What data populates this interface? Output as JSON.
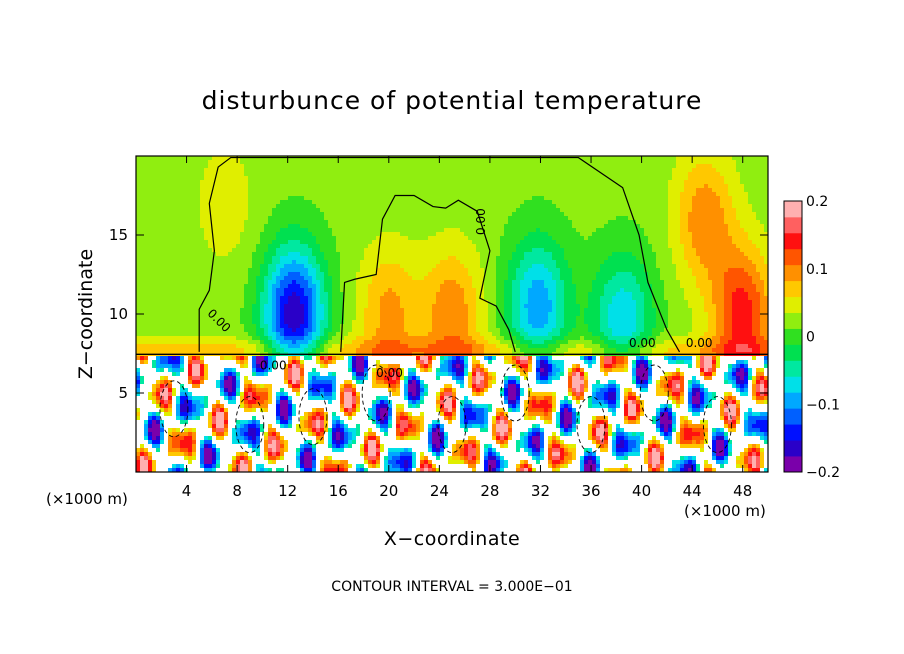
{
  "chart_data": {
    "type": "heatmap",
    "title": "disturbunce of potential temperature",
    "xlabel": "X−coordinate",
    "ylabel": "Z−coordinate",
    "xunit": "(×1000 m)",
    "xunit_right": "(×1000 m)",
    "footer": "CONTOUR INTERVAL = 3.000E−01",
    "xlim": [
      0,
      50
    ],
    "ylim": [
      0,
      20
    ],
    "x_ticks": [
      4,
      8,
      12,
      16,
      20,
      24,
      28,
      32,
      36,
      40,
      44,
      48
    ],
    "y_ticks": [
      5,
      10,
      15
    ],
    "colorbar": {
      "range": [
        -0.2,
        0.2
      ],
      "tick_values": [
        0.2,
        0.1,
        0,
        -0.1,
        -0.2
      ],
      "tick_labels": [
        "0.2",
        "0.1",
        "0",
        "−0.1",
        "−0.2"
      ],
      "colors": [
        "#7a00aa",
        "#2a00c8",
        "#0010ff",
        "#0060ff",
        "#00a8ff",
        "#00e0e8",
        "#00e8a0",
        "#00e050",
        "#30e020",
        "#90ee10",
        "#e0ee00",
        "#ffc800",
        "#ff9000",
        "#ff5500",
        "#ff1010",
        "#ff6060",
        "#ffb0b0"
      ]
    },
    "contour_labels": [
      "0.00",
      "0.00",
      "0.00",
      "0.00",
      "0.00",
      "0.00"
    ],
    "features": [
      {
        "x": 12.5,
        "z": 10.0,
        "value": -0.19
      },
      {
        "x": 31.8,
        "z": 10.5,
        "value": -0.12
      },
      {
        "x": 38.5,
        "z": 9.5,
        "value": -0.1
      },
      {
        "x": 7.0,
        "z": 17.0,
        "value": 0.03
      },
      {
        "x": 20.0,
        "z": 10.0,
        "value": 0.07
      },
      {
        "x": 25.0,
        "z": 10.0,
        "value": 0.08
      },
      {
        "x": 48.0,
        "z": 10.0,
        "value": 0.12
      },
      {
        "x": 45.0,
        "z": 16.0,
        "value": 0.08
      }
    ]
  }
}
